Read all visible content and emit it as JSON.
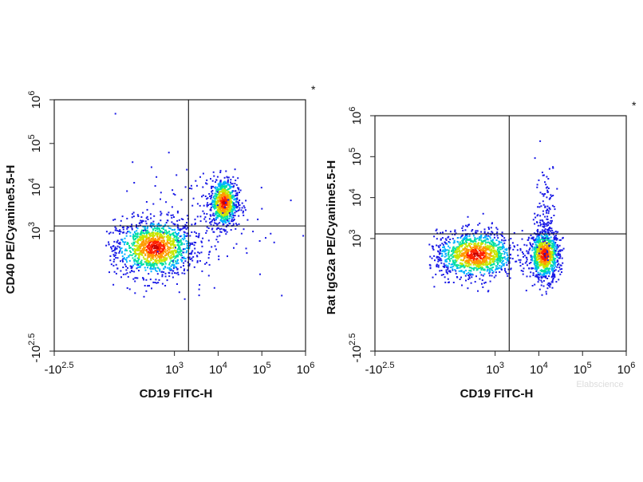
{
  "watermark": "Elabscience",
  "palette": [
    "#1a1ae6",
    "#00b0ff",
    "#00e0a0",
    "#c8e600",
    "#ff9900",
    "#ff2000",
    "#c80000"
  ],
  "chart_data": [
    {
      "type": "scatter",
      "title": "",
      "xlabel": "CD19 FITC-H",
      "ylabel": "CD40 PE/Cyanine5.5-H",
      "corner_mark": "*",
      "scale": "biexponential (log)",
      "x_ticks": [
        {
          "base": "-10",
          "exp": "2.5",
          "value": -316
        },
        {
          "base": "10",
          "exp": "3",
          "value": 1000
        },
        {
          "base": "10",
          "exp": "4",
          "value": 10000
        },
        {
          "base": "10",
          "exp": "5",
          "value": 100000
        },
        {
          "base": "10",
          "exp": "6",
          "value": 1000000
        }
      ],
      "y_ticks": [
        {
          "base": "-10",
          "exp": "2.5",
          "value": -316
        },
        {
          "base": "10",
          "exp": "3",
          "value": 1000
        },
        {
          "base": "10",
          "exp": "4",
          "value": 10000
        },
        {
          "base": "10",
          "exp": "5",
          "value": 100000
        },
        {
          "base": "10",
          "exp": "6",
          "value": 1000000
        }
      ],
      "xlim": [
        -316,
        1000000
      ],
      "ylim": [
        -316,
        1000000
      ],
      "gate": {
        "x": 2100,
        "y": 1300
      },
      "populations": [
        {
          "name_hint": "CD19- CD40-",
          "center": [
            350,
            430
          ],
          "spread_decades": [
            0.45,
            0.32
          ],
          "events": 1300
        },
        {
          "name_hint": "CD19+ CD40+",
          "center": [
            13000,
            4600
          ],
          "spread_decades": [
            0.16,
            0.28
          ],
          "events": 800
        },
        {
          "name_hint": "sparse",
          "center": [
            2500,
            1600
          ],
          "spread_decades": [
            0.9,
            0.7
          ],
          "events": 140
        }
      ]
    },
    {
      "type": "scatter",
      "title": "",
      "xlabel": "CD19 FITC-H",
      "ylabel": "Rat IgG2a PE/Cyanine5.5-H",
      "corner_mark": "*",
      "scale": "biexponential (log)",
      "x_ticks": [
        {
          "base": "-10",
          "exp": "2.5",
          "value": -316
        },
        {
          "base": "10",
          "exp": "3",
          "value": 1000
        },
        {
          "base": "10",
          "exp": "4",
          "value": 10000
        },
        {
          "base": "10",
          "exp": "5",
          "value": 100000
        },
        {
          "base": "10",
          "exp": "6",
          "value": 1000000
        }
      ],
      "y_ticks": [
        {
          "base": "-10",
          "exp": "2.5",
          "value": -316
        },
        {
          "base": "10",
          "exp": "3",
          "value": 1000
        },
        {
          "base": "10",
          "exp": "4",
          "value": 10000
        },
        {
          "base": "10",
          "exp": "5",
          "value": 100000
        },
        {
          "base": "10",
          "exp": "6",
          "value": 1000000
        }
      ],
      "xlim": [
        -316,
        1000000
      ],
      "ylim": [
        -316,
        1000000
      ],
      "gate": {
        "x": 2100,
        "y": 1300
      },
      "populations": [
        {
          "name_hint": "CD19- isotype",
          "center": [
            350,
            420
          ],
          "spread_decades": [
            0.45,
            0.28
          ],
          "events": 1200
        },
        {
          "name_hint": "CD19+ isotype",
          "center": [
            13000,
            420
          ],
          "spread_decades": [
            0.17,
            0.3
          ],
          "events": 900
        },
        {
          "name_hint": "CD19+ tail",
          "center": [
            14000,
            5000
          ],
          "spread_decades": [
            0.12,
            0.6
          ],
          "events": 120
        }
      ]
    }
  ]
}
